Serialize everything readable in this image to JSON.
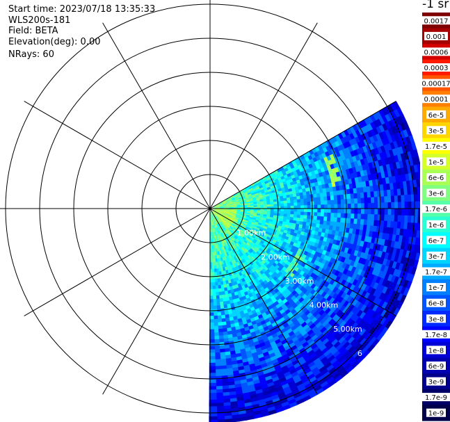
{
  "header": {
    "start_time": "Start time: 2023/07/18 13:35:33",
    "instrument": "WLS200s-181",
    "field": "Field: BETA",
    "elevation": "Elevation(deg): 0.00",
    "nrays": "NRays: 60"
  },
  "colorbar": {
    "unit": "-1 sr",
    "labels": [
      "0.0017",
      "0.001",
      "0.0006",
      "0.0003",
      "0.00017",
      "0.0001",
      "6e-5",
      "3e-5",
      "1.7e-5",
      "1e-5",
      "6e-6",
      "3e-6",
      "1.7e-6",
      "1e-6",
      "6e-7",
      "3e-7",
      "1.7e-7",
      "1e-7",
      "6e-8",
      "3e-8",
      "1.7e-8",
      "1e-8",
      "6e-9",
      "3e-9",
      "1.7e-9",
      "1e-9"
    ],
    "colors": [
      "#7f0000",
      "#a50000",
      "#d40000",
      "#ff1a00",
      "#ff5500",
      "#ff8000",
      "#ffaa00",
      "#ffd500",
      "#ffff00",
      "#d4ff2a",
      "#aaff55",
      "#80ff80",
      "#55ffaa",
      "#2affd4",
      "#00ffff",
      "#00d4ff",
      "#00aaff",
      "#0080ff",
      "#0055ff",
      "#002aff",
      "#0000ff",
      "#0000d4",
      "#0000b0",
      "#00008b",
      "#000066",
      "#00004a"
    ]
  },
  "chart_data": {
    "type": "heatmap",
    "projection": "polar-ppi",
    "field": "BETA",
    "range_rings_km": [
      1,
      2,
      3,
      4,
      5,
      6
    ],
    "range_labels": [
      "1.00km",
      "2.00km",
      "3.00km",
      "4.00km",
      "5.00km",
      "6"
    ],
    "spoke_step_deg": 30,
    "scan_sector_azimuth_deg": [
      60,
      180
    ],
    "max_range_km": 6.3,
    "color_scale": "log",
    "value_range": [
      1e-09,
      0.0017
    ]
  }
}
